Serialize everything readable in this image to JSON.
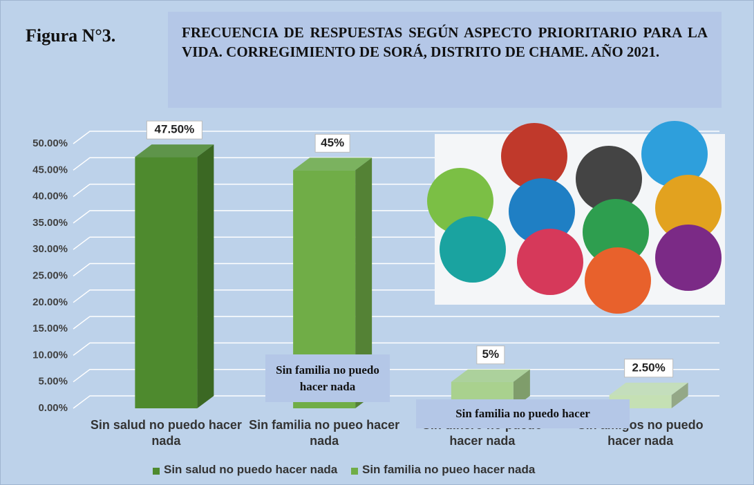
{
  "chart_data": {
    "type": "bar",
    "figure_label": "Figura N°3.",
    "title": "FRECUENCIA DE RESPUESTAS SEGÚN ASPECTO PRIORITARIO PARA LA VIDA. CORREGIMIENTO DE SORÁ, DISTRITO DE CHAME. AÑO 2021.",
    "categories": [
      "Sin salud no puedo hacer nada",
      "Sin familia no pueo hacer nada",
      "Sin dinero no puedo hacer nada",
      "Sin amigos no puedo hacer nada"
    ],
    "values": [
      47.5,
      45,
      5,
      2.5
    ],
    "value_labels": [
      "47.50%",
      "45%",
      "5%",
      "2.50%"
    ],
    "colors": [
      "#4e8a2e",
      "#70ad47",
      "#a9d18e",
      "#c5e0b4"
    ],
    "ylim": [
      0,
      50
    ],
    "yticks": [
      {
        "value": 0,
        "label": "0.00%"
      },
      {
        "value": 5,
        "label": "5.00%"
      },
      {
        "value": 10,
        "label": "10.00%"
      },
      {
        "value": 15,
        "label": "15.00%"
      },
      {
        "value": 20,
        "label": "20.00%"
      },
      {
        "value": 25,
        "label": "25.00%"
      },
      {
        "value": 30,
        "label": "30.00%"
      },
      {
        "value": 35,
        "label": "35.00%"
      },
      {
        "value": 40,
        "label": "40.00%"
      },
      {
        "value": 45,
        "label": "45.00%"
      },
      {
        "value": 50,
        "label": "50.00%"
      }
    ],
    "grid": true,
    "legend": [
      {
        "name": "Sin salud no puedo hacer nada",
        "color": "#4e8a2e"
      },
      {
        "name": "Sin familia no pueo hacer nada",
        "color": "#70ad47"
      }
    ],
    "annotations": [
      "Sin familia no puedo hacer nada",
      "Sin familia no puedo hacer"
    ]
  }
}
